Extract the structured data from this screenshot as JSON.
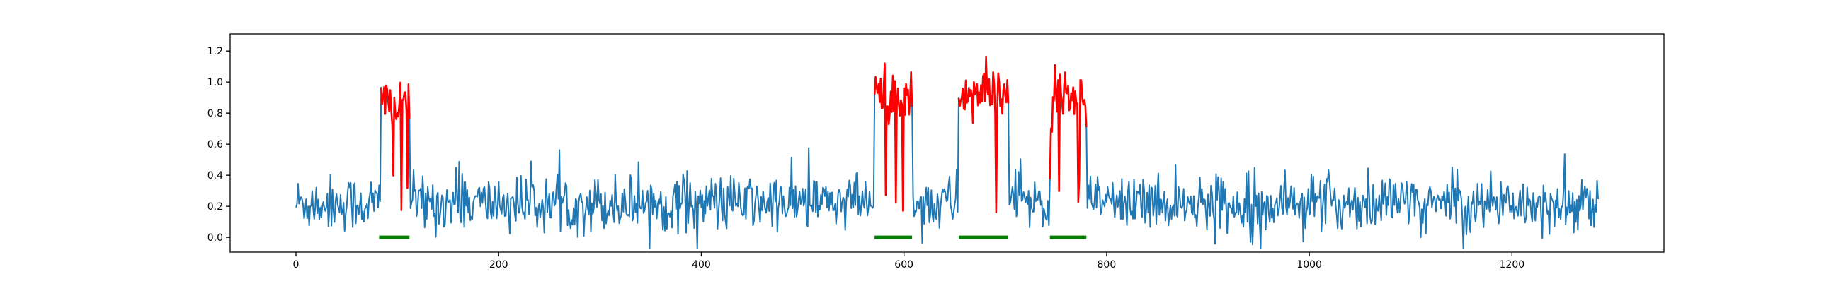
{
  "chart_data": {
    "type": "line",
    "title": "",
    "xlabel": "",
    "ylabel": "",
    "xlim": [
      -65,
      1350
    ],
    "ylim": [
      -0.095,
      1.31
    ],
    "grid": false,
    "legend": "none",
    "x_ticks": [
      0,
      200,
      400,
      600,
      800,
      1000,
      1200
    ],
    "x_tick_labels": [
      "0",
      "200",
      "400",
      "600",
      "800",
      "1000",
      "1200"
    ],
    "y_ticks": [
      0.0,
      0.2,
      0.4,
      0.6,
      0.8,
      1.0,
      1.2
    ],
    "y_tick_labels": [
      "0.0",
      "0.2",
      "0.4",
      "0.6",
      "0.8",
      "1.0",
      "1.2"
    ],
    "n_points": 1286,
    "signal": {
      "color": "#1f77b4",
      "baseline_mean": 0.22,
      "baseline_noise": 0.09
    },
    "anomalies": {
      "color": "#ff0000",
      "segments": [
        {
          "start": 84,
          "end": 112,
          "level": 0.88
        },
        {
          "start": 571,
          "end": 608,
          "level": 0.9
        },
        {
          "start": 654,
          "end": 703,
          "level": 0.92
        },
        {
          "start": 744,
          "end": 780,
          "level": 0.88
        }
      ]
    },
    "markers": {
      "color": "#008000",
      "y": 0.0,
      "intervals": [
        [
          82,
          112
        ],
        [
          571,
          608
        ],
        [
          654,
          703
        ],
        [
          744,
          780
        ]
      ]
    }
  }
}
